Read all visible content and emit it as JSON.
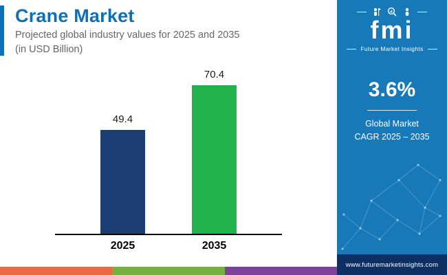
{
  "header": {
    "title": "Crane Market",
    "subtitle_line1": "Projected global industry values for 2025 and 2035",
    "subtitle_line2": "(in USD Billion)"
  },
  "chart_data": {
    "type": "bar",
    "title": "Crane Market",
    "subtitle": "Projected global industry values for 2025 and 2035 (in USD Billion)",
    "categories": [
      "2025",
      "2035"
    ],
    "values": [
      49.4,
      70.4
    ],
    "value_labels": [
      "49.4",
      "70.4"
    ],
    "bar_colors": [
      "#1b3d74",
      "#22b24c"
    ],
    "xlabel": "",
    "ylabel": "USD Billion",
    "ylim": [
      0,
      80
    ],
    "grid": false,
    "legend": false
  },
  "accent": {
    "title_color": "#0a71b9",
    "sidebar_bg": "#1779b7",
    "sidebar_footer_bg": "#0d2f63"
  },
  "footer_stripe_colors": [
    "#e96a45",
    "#76b043",
    "#7d4199"
  ],
  "sidebar": {
    "logo_word": "fmi",
    "logo_subtext": "Future Market Insights",
    "cagr_value": "3.6%",
    "cagr_label_line1": "Global Market",
    "cagr_label_line2": "CAGR 2025 – 2035",
    "website": "www.futuremarketinsights.com"
  }
}
